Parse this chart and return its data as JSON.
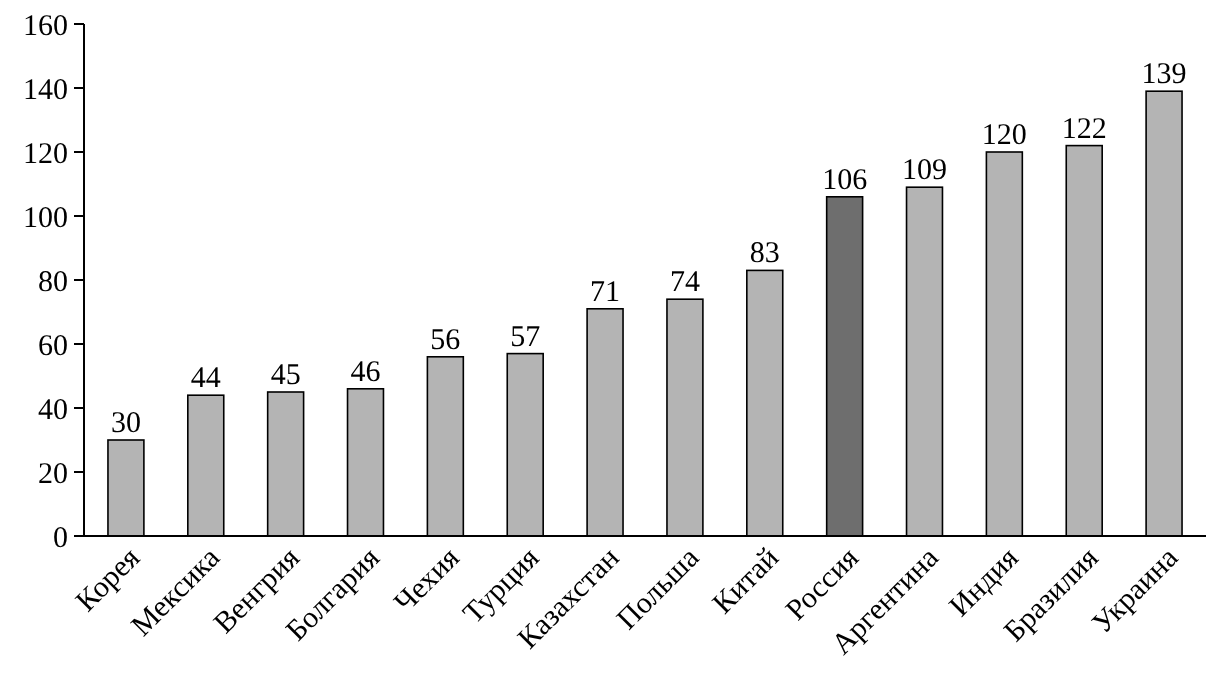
{
  "chart_data": {
    "type": "bar",
    "categories": [
      "Корея",
      "Мексика",
      "Венгрия",
      "Болгария",
      "Чехия",
      "Турция",
      "Казахстан",
      "Польша",
      "Китай",
      "Россия",
      "Аргентина",
      "Индия",
      "Бразилия",
      "Украина"
    ],
    "values": [
      30,
      44,
      45,
      46,
      56,
      57,
      71,
      74,
      83,
      106,
      109,
      120,
      122,
      139
    ],
    "colors": [
      "#b4b4b4",
      "#b4b4b4",
      "#b4b4b4",
      "#b4b4b4",
      "#b4b4b4",
      "#b4b4b4",
      "#b4b4b4",
      "#b4b4b4",
      "#b4b4b4",
      "#6e6e6e",
      "#b4b4b4",
      "#b4b4b4",
      "#b4b4b4",
      "#b4b4b4"
    ],
    "ylim": [
      0,
      160
    ],
    "yticks": [
      0,
      20,
      40,
      60,
      80,
      100,
      120,
      140,
      160
    ],
    "grid": false,
    "data_labels": true
  }
}
